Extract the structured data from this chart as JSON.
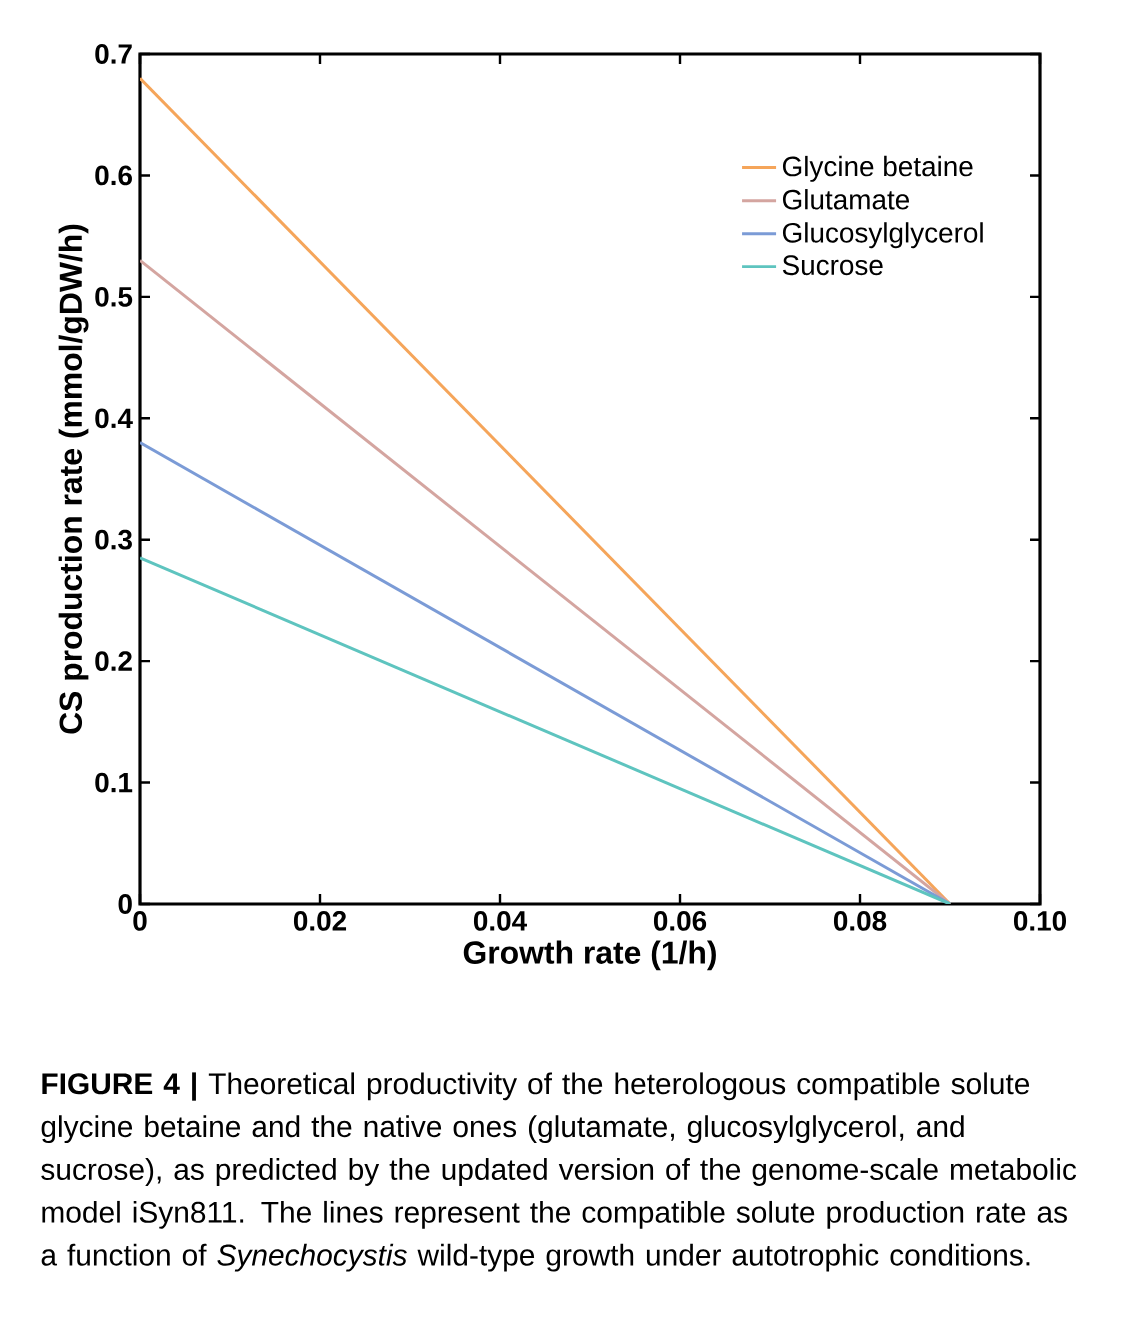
{
  "chart_data": {
    "type": "line",
    "xlabel": "Growth rate (1/h)",
    "ylabel": "CS production rate (mmol/gDW/h)",
    "series": [
      {
        "name": "Glycine betaine",
        "color": "#f5a55a",
        "values": [
          0.68,
          0
        ]
      },
      {
        "name": "Glutamate",
        "color": "#d4a5a0",
        "values": [
          0.53,
          0
        ]
      },
      {
        "name": "Glucosylglycerol",
        "color": "#7b9bd6",
        "values": [
          0.38,
          0
        ]
      },
      {
        "name": "Sucrose",
        "color": "#5ec4bf",
        "values": [
          0.285,
          0
        ]
      }
    ],
    "x": [
      0,
      0.09
    ],
    "xlim": [
      0,
      0.1
    ],
    "ylim": [
      0,
      0.7
    ],
    "xticks": [
      0,
      {
        "value": 0.02,
        "label": "0.02"
      },
      {
        "value": 0.04,
        "label": "0.04"
      },
      {
        "value": 0.06,
        "label": "0.06"
      },
      {
        "value": 0.08,
        "label": "0.08"
      },
      {
        "value": 0.1,
        "label": "0.10"
      }
    ],
    "yticks": [
      0,
      0.1,
      0.2,
      0.3,
      0.4,
      0.5,
      0.6,
      0.7
    ],
    "legend": "top right",
    "marker": "none",
    "line_style": "solid",
    "grid": false,
    "annotations": [
      "**FIGURE 4 |** Theoretical productivity of the heterologous compatible solute glycine betaine and the native ones (glutamate, glucosylglycerol, and sucrose), as predicted by the updated version of the genome-scale metabolic model iSyn811. The lines represent the compatible solute production rate as a function of *Synechocystis* wild-type growth under autotrophic conditions."
    ]
  }
}
